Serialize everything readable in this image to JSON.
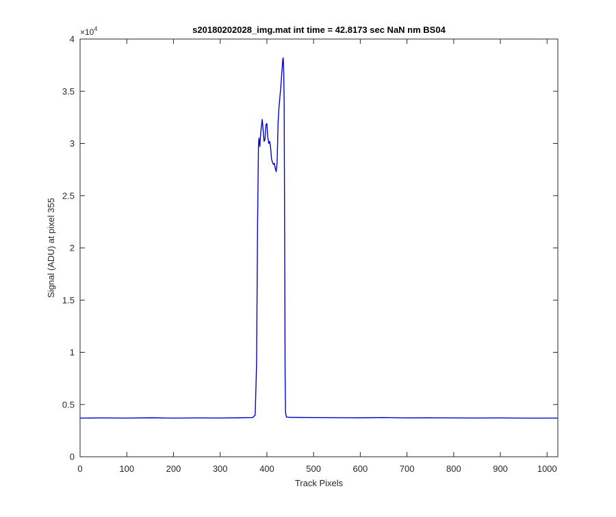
{
  "chart_data": {
    "type": "line",
    "title": "s20180202028_img.mat int time = 42.8173 sec  NaN nm BS04",
    "xlabel": "Track Pixels",
    "ylabel": "Signal (ADU) at pixel 355",
    "xlim": [
      0,
      1023
    ],
    "ylim": [
      0,
      40000
    ],
    "xticks": [
      0,
      100,
      200,
      300,
      400,
      500,
      600,
      700,
      800,
      900,
      1000
    ],
    "xtick_labels": [
      "0",
      "100",
      "200",
      "300",
      "400",
      "500",
      "600",
      "700",
      "800",
      "900",
      "1000"
    ],
    "yticks": [
      0,
      5000,
      10000,
      15000,
      20000,
      25000,
      30000,
      35000,
      40000
    ],
    "ytick_labels": [
      "0",
      "0.5",
      "1",
      "1.5",
      "2",
      "2.5",
      "3",
      "3.5",
      "4"
    ],
    "y_exponent_label": "×10",
    "y_exponent_power": "4",
    "grid": false,
    "legend": "none",
    "series": [
      {
        "color": "#0000CD",
        "x": [
          0,
          50,
          100,
          150,
          200,
          250,
          300,
          340,
          370,
          375,
          378,
          380,
          382,
          383,
          385,
          386,
          388,
          390,
          392,
          394,
          396,
          398,
          400,
          402,
          404,
          406,
          408,
          410,
          412,
          414,
          416,
          418,
          420,
          422,
          424,
          426,
          428,
          430,
          432,
          434,
          435,
          436,
          437,
          438,
          439,
          440,
          442,
          445,
          450,
          500,
          550,
          600,
          650,
          700,
          750,
          800,
          850,
          900,
          950,
          1000,
          1023
        ],
        "y": [
          3700,
          3720,
          3700,
          3730,
          3700,
          3720,
          3710,
          3730,
          3760,
          4000,
          9000,
          22000,
          29800,
          30500,
          29700,
          30600,
          31500,
          32300,
          31300,
          30200,
          30400,
          31800,
          31900,
          30600,
          30000,
          30200,
          29600,
          28500,
          28200,
          28000,
          28100,
          27600,
          27300,
          28200,
          32000,
          33500,
          34500,
          35500,
          36800,
          38000,
          38200,
          37000,
          34000,
          22000,
          8000,
          4200,
          3800,
          3790,
          3770,
          3760,
          3740,
          3730,
          3760,
          3720,
          3730,
          3720,
          3710,
          3720,
          3700,
          3700,
          3700
        ]
      }
    ]
  }
}
